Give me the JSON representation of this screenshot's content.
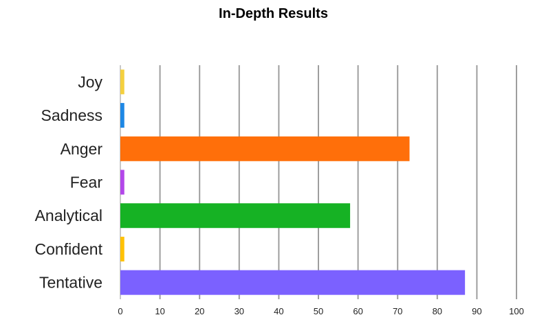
{
  "chart_data": {
    "type": "bar",
    "orientation": "horizontal",
    "title": "In-Depth Results",
    "xlabel": "",
    "ylabel": "",
    "categories": [
      "Joy",
      "Sadness",
      "Anger",
      "Fear",
      "Analytical",
      "Confident",
      "Tentative"
    ],
    "values": [
      1,
      1,
      73,
      1,
      58,
      1,
      87
    ],
    "colors": [
      "#f4d03f",
      "#1e88e5",
      "#ff6f0a",
      "#b347ea",
      "#16b224",
      "#ffc107",
      "#7b61ff"
    ],
    "xlim": [
      0,
      100
    ],
    "xticks": [
      0,
      10,
      20,
      30,
      40,
      50,
      60,
      70,
      80,
      90,
      100
    ],
    "grid": true,
    "gridline_color": "#9e9e9e",
    "legend": "none"
  }
}
